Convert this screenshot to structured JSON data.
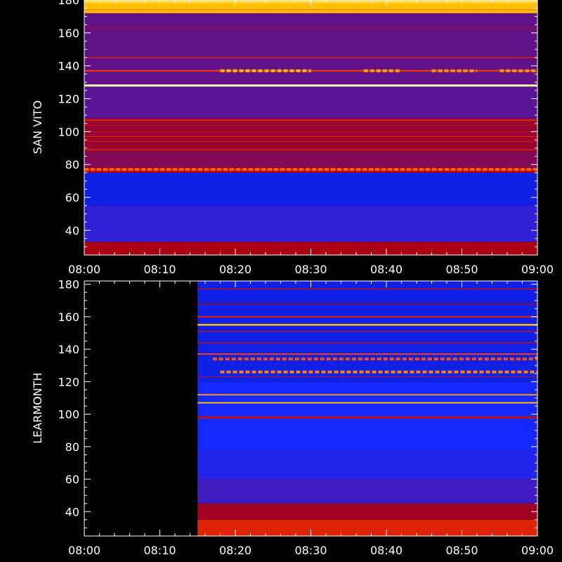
{
  "chart_data": [
    {
      "type": "heatmap",
      "ylabel": "SAN VITO",
      "xlabel": "",
      "title": "",
      "x_ticks": [
        "08:00",
        "08:10",
        "08:20",
        "08:30",
        "08:40",
        "08:50",
        "09:00"
      ],
      "x_range": [
        "08:00",
        "09:00"
      ],
      "y_ticks": [
        40,
        60,
        80,
        100,
        120,
        140,
        160,
        180
      ],
      "ylim": [
        25,
        180
      ],
      "grid": false,
      "data_start": "08:00",
      "bands": [
        {
          "y0": 25,
          "y1": 33,
          "level": 0.5
        },
        {
          "y0": 33,
          "y1": 55,
          "level": 0.18
        },
        {
          "y0": 55,
          "y1": 75,
          "level": 0.08
        },
        {
          "y0": 75,
          "y1": 78,
          "level": 0.52
        },
        {
          "y0": 78,
          "y1": 88,
          "level": 0.4
        },
        {
          "y0": 88,
          "y1": 108,
          "level": 0.45
        },
        {
          "y0": 108,
          "y1": 128,
          "level": 0.3
        },
        {
          "y0": 128,
          "y1": 172,
          "level": 0.32
        },
        {
          "y0": 172,
          "y1": 180,
          "level": 0.85
        }
      ],
      "lines": [
        {
          "y": 77,
          "level": 0.65,
          "width": 2
        },
        {
          "y": 89,
          "level": 0.62,
          "width": 1.5
        },
        {
          "y": 94,
          "level": 0.58,
          "width": 1.5
        },
        {
          "y": 97,
          "level": 0.6,
          "width": 1.5
        },
        {
          "y": 100,
          "level": 0.55,
          "width": 1
        },
        {
          "y": 104,
          "level": 0.57,
          "width": 1
        },
        {
          "y": 107,
          "level": 0.62,
          "width": 2
        },
        {
          "y": 128,
          "level": 1.0,
          "width": 3
        },
        {
          "y": 137,
          "level": 0.7,
          "width": 2
        },
        {
          "y": 145,
          "level": 0.62,
          "width": 1.5
        },
        {
          "y": 163,
          "level": 0.55,
          "width": 1
        },
        {
          "y": 174,
          "level": 0.8,
          "width": 2
        },
        {
          "y": 179,
          "level": 0.92,
          "width": 4
        }
      ],
      "bursts": [
        {
          "y": 137,
          "t0": "08:18",
          "t1": "08:30",
          "level": 0.85
        },
        {
          "y": 137,
          "t0": "08:37",
          "t1": "08:42",
          "level": 0.82
        },
        {
          "y": 137,
          "t0": "08:46",
          "t1": "08:52",
          "level": 0.8
        },
        {
          "y": 137,
          "t0": "08:55",
          "t1": "09:00",
          "level": 0.8
        },
        {
          "y": 77,
          "t0": "08:00",
          "t1": "09:00",
          "level": 0.75
        }
      ]
    },
    {
      "type": "heatmap",
      "ylabel": "LEARMONTH",
      "xlabel": "",
      "title": "",
      "x_ticks": [
        "08:00",
        "08:10",
        "08:20",
        "08:30",
        "08:40",
        "08:50",
        "09:00"
      ],
      "x_range": [
        "08:00",
        "09:00"
      ],
      "y_ticks": [
        40,
        60,
        80,
        100,
        120,
        140,
        160,
        180
      ],
      "ylim": [
        25,
        182
      ],
      "grid": false,
      "data_start": "08:15",
      "bands": [
        {
          "y0": 25,
          "y1": 35,
          "level": 0.62
        },
        {
          "y0": 35,
          "y1": 45,
          "level": 0.48
        },
        {
          "y0": 45,
          "y1": 60,
          "level": 0.22
        },
        {
          "y0": 60,
          "y1": 78,
          "level": 0.14
        },
        {
          "y0": 78,
          "y1": 120,
          "level": 0.1
        },
        {
          "y0": 120,
          "y1": 182,
          "level": 0.08
        }
      ],
      "lines": [
        {
          "y": 98,
          "level": 0.55,
          "width": 3
        },
        {
          "y": 107,
          "level": 0.85,
          "width": 2
        },
        {
          "y": 112,
          "level": 0.8,
          "width": 2
        },
        {
          "y": 123,
          "level": 0.55,
          "width": 1
        },
        {
          "y": 137,
          "level": 0.7,
          "width": 2
        },
        {
          "y": 144,
          "level": 0.55,
          "width": 1.5
        },
        {
          "y": 151,
          "level": 0.55,
          "width": 1.5
        },
        {
          "y": 155,
          "level": 0.85,
          "width": 2.5
        },
        {
          "y": 160,
          "level": 0.62,
          "width": 2
        },
        {
          "y": 168,
          "level": 0.5,
          "width": 1.5
        },
        {
          "y": 177,
          "level": 0.55,
          "width": 1.5
        }
      ],
      "bursts": [
        {
          "y": 126,
          "t0": "08:18",
          "t1": "09:00",
          "level": 0.78
        },
        {
          "y": 134,
          "t0": "08:17",
          "t1": "09:00",
          "level": 0.72
        }
      ]
    }
  ]
}
